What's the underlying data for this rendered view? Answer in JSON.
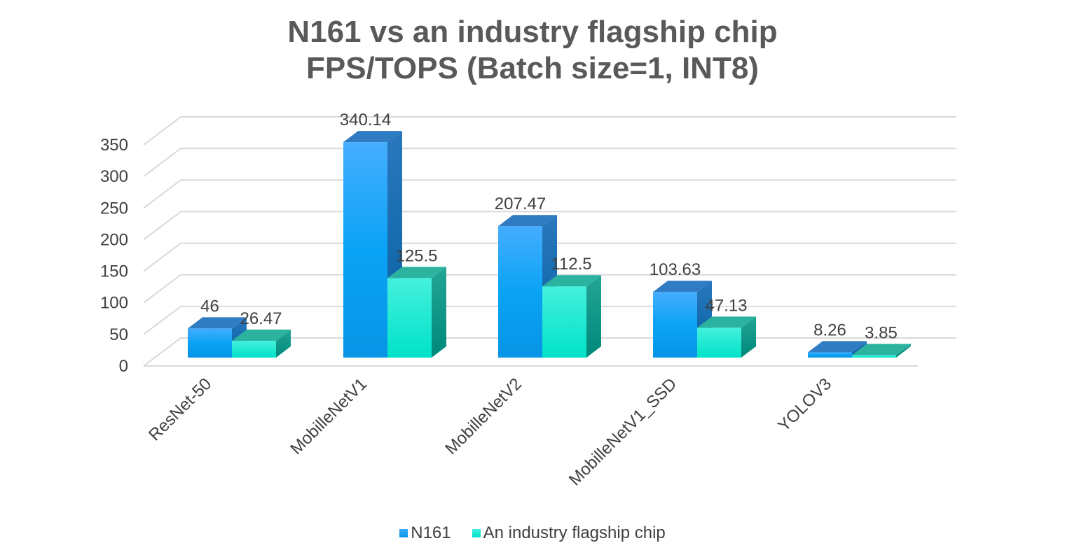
{
  "chart_data": {
    "type": "bar",
    "title": [
      "N161 vs an industry flagship chip",
      "FPS/TOPS (Batch size=1, INT8)"
    ],
    "xlabel": "",
    "ylabel": "",
    "categories": [
      "ResNet-50",
      "MobilleNetV1",
      "MobilleNetV2",
      "MobilleNetV1_SSD",
      "YOLOV3"
    ],
    "series": [
      {
        "name": "N161",
        "values": [
          46,
          340.14,
          207.47,
          103.63,
          8.26
        ],
        "labels": [
          "46",
          "340.14",
          "207.47",
          "103.63",
          "8.26"
        ],
        "color": "#0a9cf0"
      },
      {
        "name": "An industry flagship chip",
        "values": [
          26.47,
          125.5,
          112.5,
          47.13,
          3.85
        ],
        "labels": [
          "26.47",
          "125.5",
          "112.5",
          "47.13",
          "3.85"
        ],
        "color": "#1ee8d4"
      }
    ],
    "ylim": [
      0,
      350
    ],
    "yticks": [
      "0",
      "50",
      "100",
      "150",
      "200",
      "250",
      "300",
      "350"
    ],
    "grid": true,
    "style": "3d-column",
    "legend": "bottom"
  }
}
